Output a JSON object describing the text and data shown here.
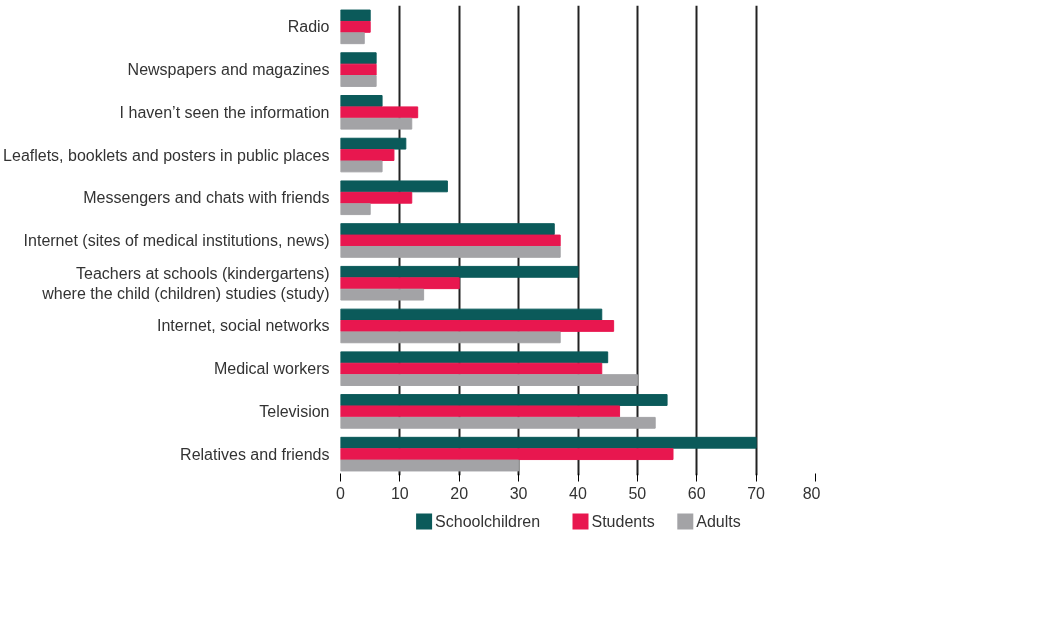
{
  "chart_data": {
    "type": "bar",
    "orientation": "horizontal",
    "categories": [
      "Radio",
      "Newspapers and magazines",
      "I haven’t seen the information",
      "Leaflets, booklets and posters in public places",
      "Messengers and chats with friends",
      "Internet (sites of medical institutions, news)",
      "Teachers at schools (kindergartens)\nwhere the child (children) studies (study)",
      "Internet, social networks",
      "Medical workers",
      "Television",
      "Relatives and friends"
    ],
    "series": [
      {
        "name": "Schoolchildren",
        "color": "#0b5a5a",
        "values": [
          5,
          6,
          7,
          11,
          18,
          36,
          40,
          44,
          45,
          55,
          70
        ]
      },
      {
        "name": "Students",
        "color": "#e8174f",
        "values": [
          5,
          6,
          13,
          9,
          12,
          37,
          20,
          46,
          44,
          47,
          56
        ]
      },
      {
        "name": "Adults",
        "color": "#a3a3a6",
        "values": [
          4,
          6,
          12,
          7,
          5,
          37,
          14,
          37,
          50,
          53,
          30
        ]
      }
    ],
    "xlim": [
      0,
      80
    ],
    "xticks": [
      0,
      10,
      20,
      30,
      40,
      50,
      60,
      70,
      80
    ],
    "grid": "x",
    "legend": "bottom"
  }
}
